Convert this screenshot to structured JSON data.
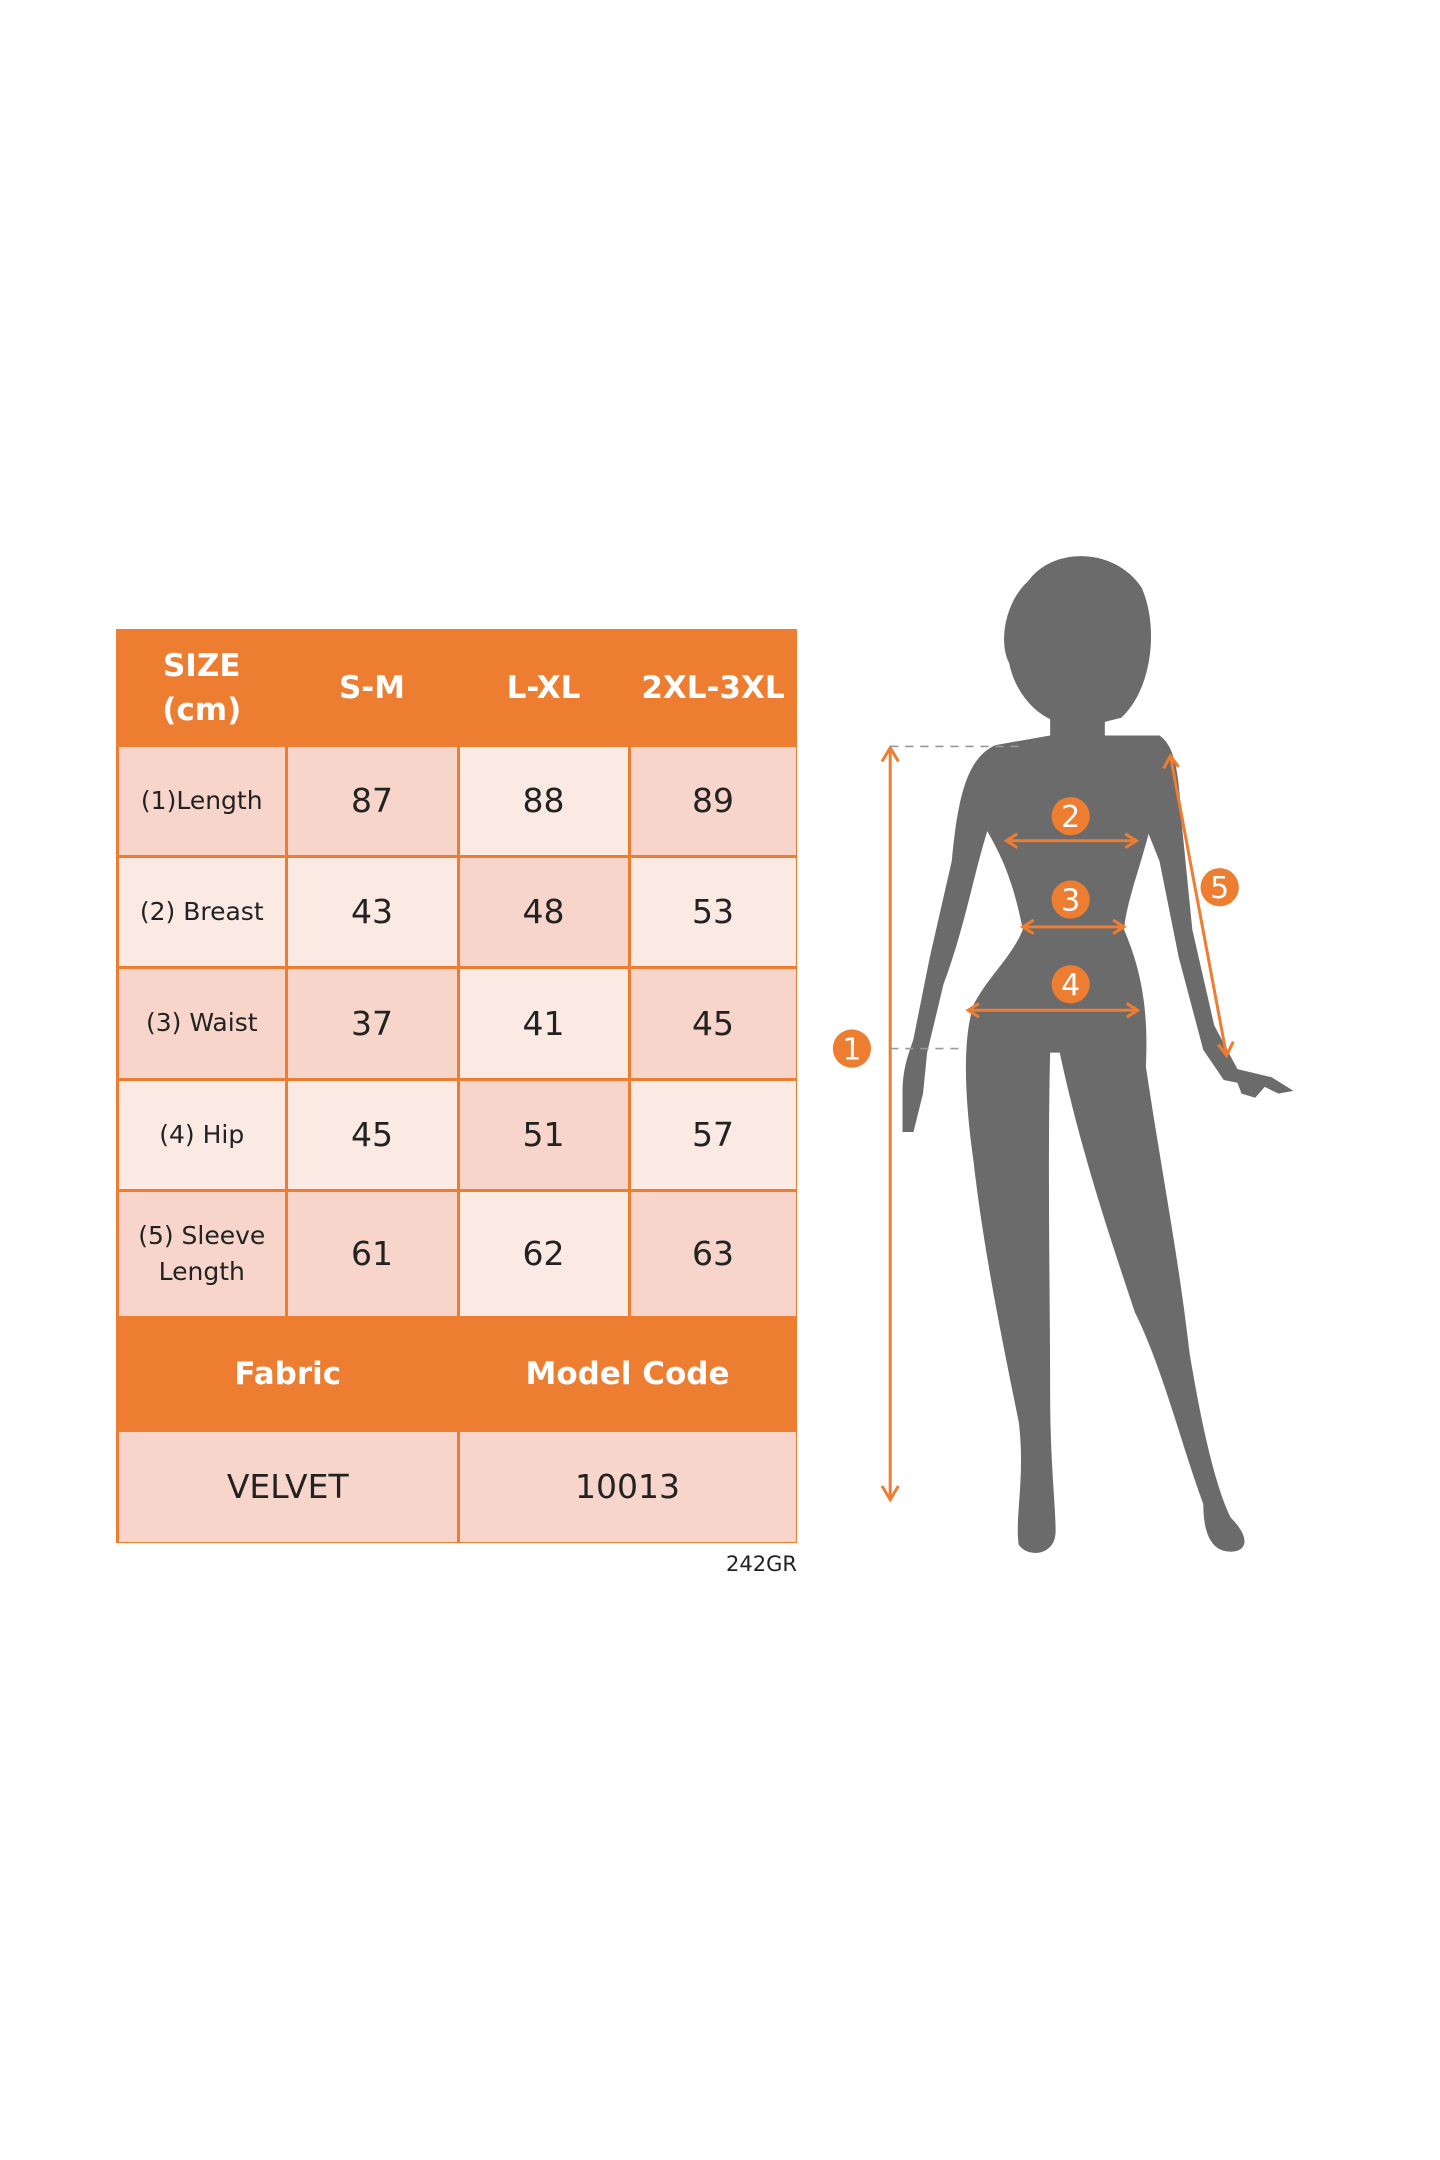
{
  "size_table": {
    "header": {
      "size_label": "SIZE\n(cm)",
      "columns": [
        "S-M",
        "L-XL",
        "2XL-3XL"
      ]
    },
    "rows": [
      {
        "label": "(1)Length",
        "values": [
          "87",
          "88",
          "89"
        ]
      },
      {
        "label": "(2) Breast",
        "values": [
          "43",
          "48",
          "53"
        ]
      },
      {
        "label": "(3) Waist",
        "values": [
          "37",
          "41",
          "45"
        ]
      },
      {
        "label": "(4) Hip",
        "values": [
          "45",
          "51",
          "57"
        ]
      },
      {
        "label": "(5) Sleeve\nLength",
        "values": [
          "61",
          "62",
          "63"
        ]
      }
    ],
    "footer_headers": [
      "Fabric",
      "Model Code"
    ],
    "footer_values": [
      "VELVET",
      "10013"
    ]
  },
  "code_label": "242GR",
  "figure": {
    "markers": [
      "1",
      "2",
      "3",
      "4",
      "5"
    ],
    "colors": {
      "accent": "#ed7d31",
      "silhouette": "#6b6b6b",
      "header_text": "#ffffff",
      "row_dark": "#f7d5ca",
      "row_light": "#fbe9e4"
    }
  }
}
